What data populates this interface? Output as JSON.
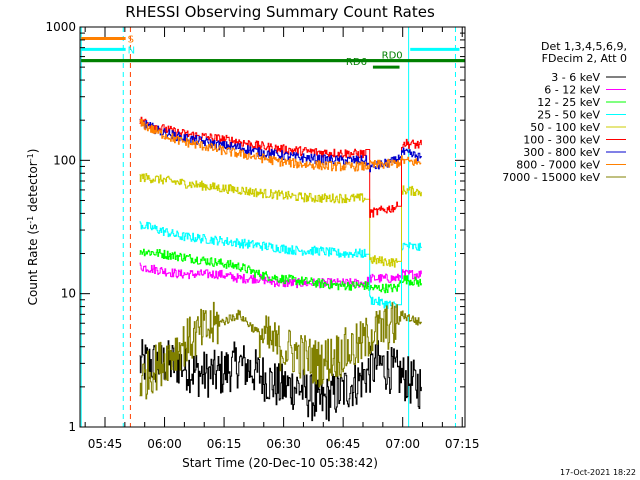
{
  "chart_data": {
    "type": "line",
    "title": "RHESSI Observing Summary Count Rates",
    "xlabel": "Start Time (20-Dec-10 05:38:42)",
    "ylabel_parts": [
      "Count Rate (s",
      "-1",
      " detector",
      "-1",
      ")"
    ],
    "yscale": "log",
    "ylim": [
      1,
      1000
    ],
    "xlim_min": [
      0,
      97
    ],
    "y_ticks": [
      {
        "value": 1,
        "label": "1"
      },
      {
        "value": 10,
        "label": "10"
      },
      {
        "value": 100,
        "label": "100"
      },
      {
        "value": 1000,
        "label": "1000"
      }
    ],
    "x_ticks": [
      {
        "value": 6.3,
        "label": "05:45"
      },
      {
        "value": 21.3,
        "label": "06:00"
      },
      {
        "value": 36.3,
        "label": "06:15"
      },
      {
        "value": 51.3,
        "label": "06:30"
      },
      {
        "value": 66.3,
        "label": "06:45"
      },
      {
        "value": 81.3,
        "label": "07:00"
      },
      {
        "value": 96.3,
        "label": "07:15"
      }
    ],
    "legend_header": [
      "Det 1,3,4,5,6,9,",
      "FDecim 2, Att 0"
    ],
    "series": [
      {
        "name": "3 - 6 keV",
        "color": "#000000",
        "x": [
          15,
          20,
          25,
          30,
          35,
          40,
          45,
          50,
          55,
          60,
          65,
          70,
          72,
          75,
          80,
          83,
          86
        ],
        "y": [
          3,
          3,
          3,
          2.5,
          2.5,
          3,
          2.5,
          2,
          2,
          1.5,
          1.8,
          2.2,
          2.5,
          3,
          2.5,
          2.2,
          2
        ]
      },
      {
        "name": "6 - 12 keV",
        "color": "#ff00ff",
        "x": [
          15,
          20,
          25,
          30,
          35,
          40,
          45,
          50,
          55,
          60,
          65,
          70,
          72,
          73,
          80,
          81,
          86
        ],
        "y": [
          16,
          15,
          14,
          14,
          14,
          13,
          13,
          12,
          12,
          12,
          12,
          12,
          12,
          13,
          13,
          14,
          14
        ]
      },
      {
        "name": "12 - 25 keV",
        "color": "#00ff00",
        "x": [
          15,
          20,
          25,
          30,
          35,
          40,
          45,
          50,
          55,
          60,
          65,
          70,
          72,
          73,
          80,
          81,
          86
        ],
        "y": [
          21,
          20,
          19,
          18,
          17,
          16,
          14,
          13,
          12.5,
          12,
          11.5,
          11.5,
          11.5,
          11,
          11,
          13,
          12
        ]
      },
      {
        "name": "25 - 50 keV",
        "color": "#00ffff",
        "x": [
          15,
          20,
          25,
          30,
          35,
          40,
          45,
          50,
          55,
          60,
          65,
          70,
          72,
          73,
          80,
          81,
          86
        ],
        "y": [
          33,
          30,
          27,
          26,
          25,
          24,
          23,
          22,
          21,
          21,
          20,
          20,
          20,
          9,
          8,
          23,
          22
        ]
      },
      {
        "name": "50 - 100 keV",
        "color": "#cccc00",
        "x": [
          15,
          20,
          25,
          30,
          35,
          40,
          45,
          50,
          55,
          60,
          65,
          70,
          72,
          73,
          80,
          81,
          86
        ],
        "y": [
          75,
          72,
          68,
          65,
          62,
          60,
          57,
          55,
          53,
          52,
          52,
          52,
          52,
          18,
          17,
          60,
          58
        ]
      },
      {
        "name": "100 - 300 keV",
        "color": "#ff0000",
        "x": [
          15,
          20,
          25,
          30,
          35,
          40,
          45,
          50,
          55,
          60,
          65,
          70,
          72,
          73,
          80,
          81,
          86
        ],
        "y": [
          200,
          175,
          160,
          152,
          145,
          138,
          128,
          122,
          118,
          115,
          113,
          112,
          112,
          40,
          45,
          135,
          130
        ]
      },
      {
        "name": "300 - 800 keV",
        "color": "#0000cc",
        "x": [
          15,
          20,
          25,
          30,
          35,
          40,
          45,
          50,
          55,
          60,
          65,
          70,
          72,
          73,
          80,
          81,
          86
        ],
        "y": [
          195,
          165,
          150,
          140,
          130,
          125,
          115,
          110,
          105,
          102,
          100,
          100,
          100,
          88,
          100,
          115,
          105
        ]
      },
      {
        "name": "800 - 7000 keV",
        "color": "#ff8000",
        "x": [
          15,
          20,
          25,
          30,
          35,
          40,
          45,
          50,
          55,
          60,
          65,
          70,
          72,
          73,
          80,
          81,
          86
        ],
        "y": [
          190,
          160,
          140,
          130,
          120,
          112,
          105,
          98,
          94,
          92,
          90,
          90,
          90,
          92,
          95,
          100,
          95
        ]
      },
      {
        "name": "7000 - 15000 keV",
        "color": "#808000",
        "x": [
          15,
          20,
          25,
          30,
          35,
          40,
          45,
          50,
          55,
          60,
          65,
          70,
          72,
          73,
          80,
          81,
          86
        ],
        "y": [
          2.2,
          3,
          4,
          5,
          6,
          7,
          5,
          4,
          3.5,
          3,
          3.5,
          4,
          4.5,
          5,
          6,
          7,
          6
        ]
      }
    ],
    "vertical_lines": [
      {
        "x": 0.3,
        "color": "#00ffff",
        "style": "solid"
      },
      {
        "x": 10.9,
        "color": "#00ffff",
        "style": "dashed"
      },
      {
        "x": 12.7,
        "color": "#ff4000",
        "style": "dashed"
      },
      {
        "x": 82.8,
        "color": "#00ffff",
        "style": "solid"
      },
      {
        "x": 94.6,
        "color": "#00ffff",
        "style": "dashed"
      }
    ],
    "flag_bars": [
      {
        "label": "S",
        "color": "#ff8000",
        "x_start": 0.3,
        "x_end": 11.5,
        "y": 820
      },
      {
        "label": "N",
        "color": "#00ffff",
        "x_start": 0.3,
        "x_end": 11.5,
        "y": 680
      },
      {
        "label": "",
        "color": "#00ffff",
        "x_start": 83.2,
        "x_end": 95.6,
        "y": 680
      },
      {
        "label": "",
        "color": "#008000",
        "x_start": 0.3,
        "x_end": 97,
        "y": 560
      },
      {
        "label": "RD0",
        "color": "#008000",
        "x_start": 0.3,
        "x_end": 97,
        "y": 560,
        "label_x": 76
      },
      {
        "label": "RD6",
        "color": "#008000",
        "x_start": 73.8,
        "x_end": 80.5,
        "y": 500,
        "label_x": 67
      }
    ]
  },
  "footer_date": "17-Oct-2021 18:22"
}
